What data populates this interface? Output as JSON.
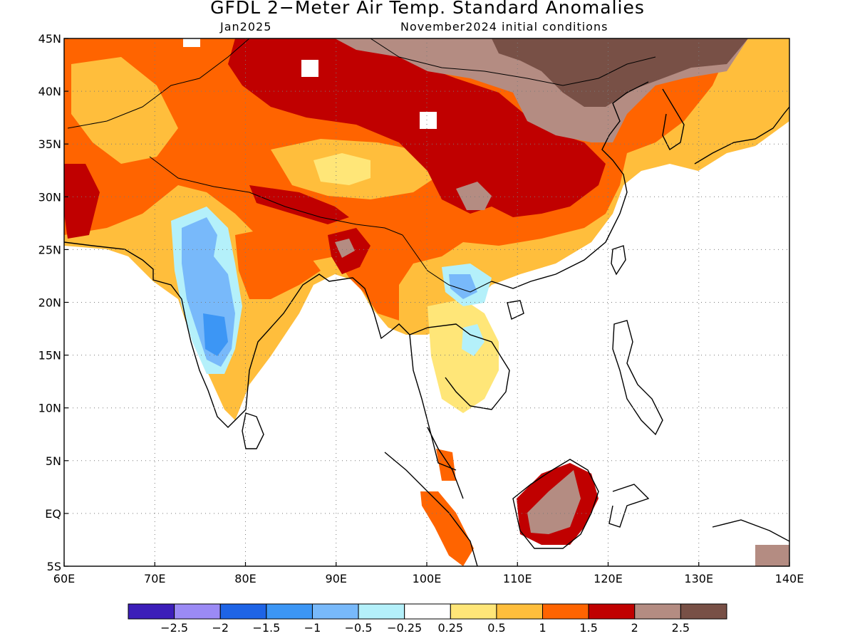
{
  "title": "GFDL 2−Meter Air Temp. Standard Anomalies",
  "subtitle_left": "Jan2025",
  "subtitle_right": "November2024 initial conditions",
  "map": {
    "projection": "lat-lon",
    "lon_range": [
      60,
      140
    ],
    "lat_range": [
      -5,
      45
    ],
    "grid": "dotted",
    "lon_ticks": [
      {
        "v": 60,
        "label": "60E"
      },
      {
        "v": 70,
        "label": "70E"
      },
      {
        "v": 80,
        "label": "80E"
      },
      {
        "v": 90,
        "label": "90E"
      },
      {
        "v": 100,
        "label": "100E"
      },
      {
        "v": 110,
        "label": "110E"
      },
      {
        "v": 120,
        "label": "120E"
      },
      {
        "v": 130,
        "label": "130E"
      },
      {
        "v": 140,
        "label": "140E"
      }
    ],
    "lat_ticks": [
      {
        "v": 45,
        "label": "45N"
      },
      {
        "v": 40,
        "label": "40N"
      },
      {
        "v": 35,
        "label": "35N"
      },
      {
        "v": 30,
        "label": "30N"
      },
      {
        "v": 25,
        "label": "25N"
      },
      {
        "v": 20,
        "label": "20N"
      },
      {
        "v": 15,
        "label": "15N"
      },
      {
        "v": 10,
        "label": "10N"
      },
      {
        "v": 5,
        "label": "5N"
      },
      {
        "v": 0,
        "label": "EQ"
      },
      {
        "v": -5,
        "label": "5S"
      }
    ]
  },
  "colorbar": {
    "colors": [
      "#3c1eb9",
      "#9b8af5",
      "#1e64e6",
      "#3c96f5",
      "#78b9fa",
      "#b4f0fa",
      "#ffffff",
      "#ffe678",
      "#ffbe3c",
      "#ff6400",
      "#c00000",
      "#b48c82",
      "#785046"
    ],
    "labels": [
      "−2.5",
      "−2",
      "−1.5",
      "−1",
      "−0.5",
      "−0.25",
      "0.25",
      "0.5",
      "1",
      "1.5",
      "2",
      "2.5"
    ]
  },
  "anomaly_regions": [
    {
      "region": "Arabian Sea / Bay of Bengal / western Pacific oceans",
      "value": 0
    },
    {
      "region": "Northern plateau, Tibet & northern China",
      "value": 1.3
    },
    {
      "region": "Northeast China / Korea / Mongolia",
      "value": 2.3
    },
    {
      "region": "Central India",
      "value": -1.0
    },
    {
      "region": "Bangladesh / Myanmar",
      "value": 1.5
    },
    {
      "region": "Borneo",
      "value": 2.0
    },
    {
      "region": "Sumatra",
      "value": 1.6
    }
  ]
}
